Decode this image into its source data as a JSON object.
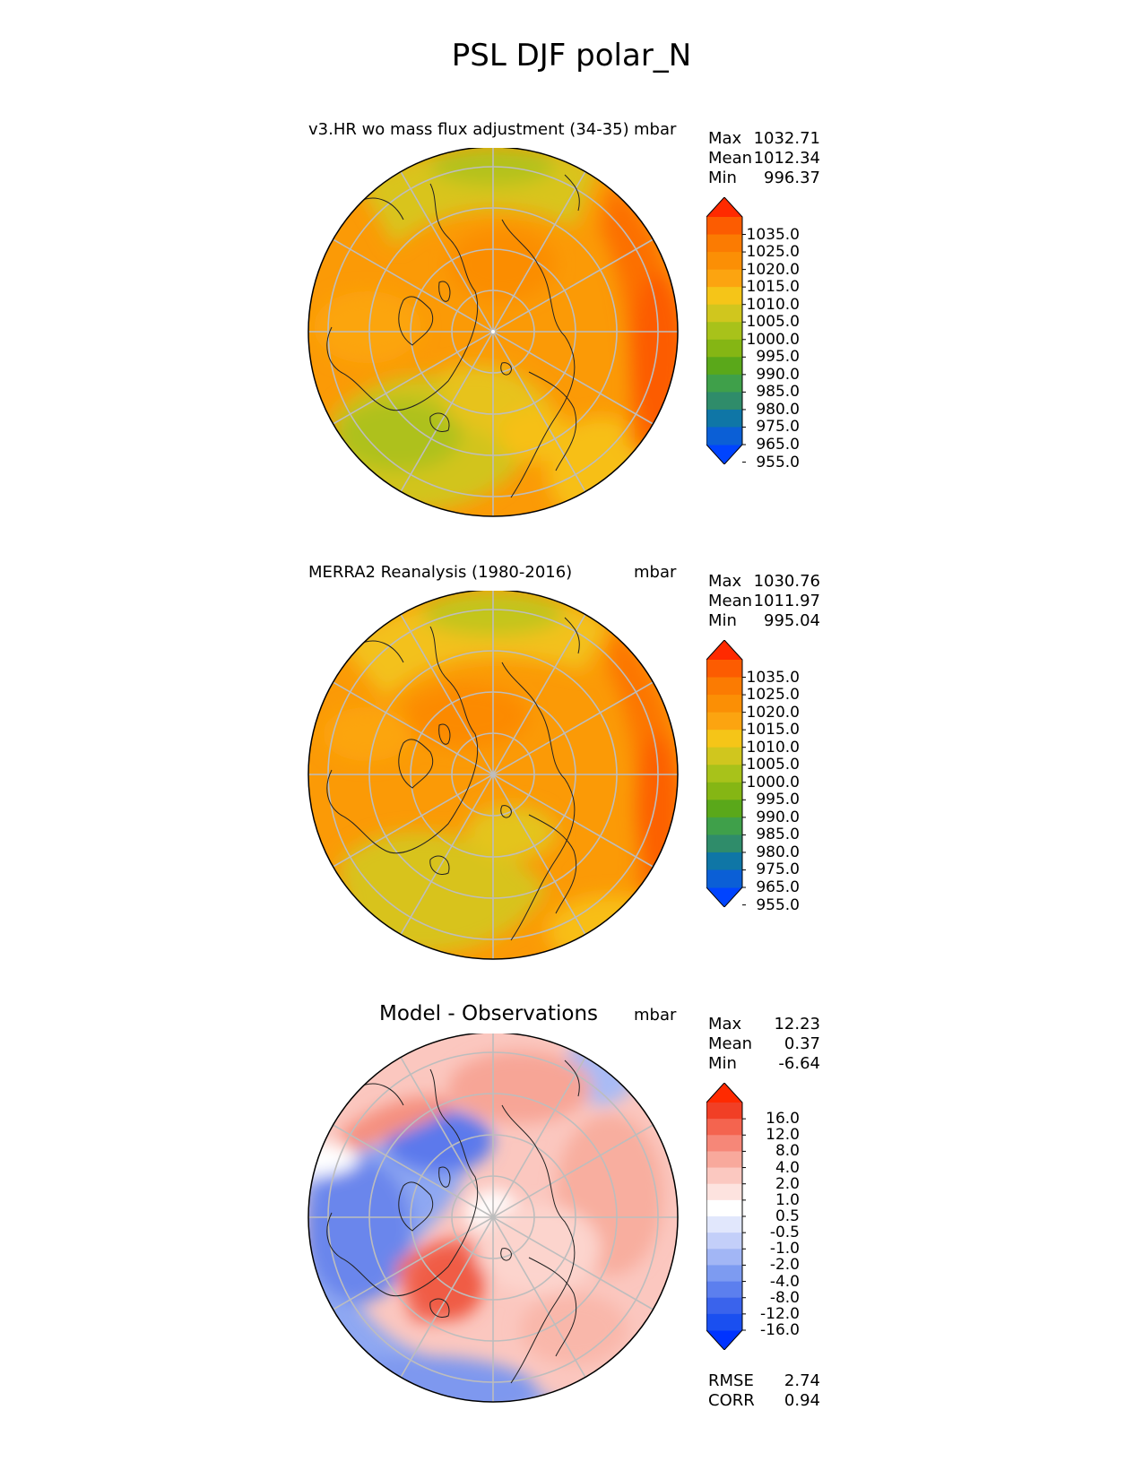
{
  "title": "PSL DJF polar_N",
  "panels": [
    {
      "id": "test",
      "title": "v3.HR wo mass flux adjustment (34-35)",
      "units": "mbar",
      "stats": [
        [
          "Max",
          "1032.71"
        ],
        [
          "Mean",
          "1012.34"
        ],
        [
          "Min",
          "996.37"
        ]
      ],
      "colorbar": {
        "colors": [
          "#0044ff",
          "#0b5fd6",
          "#0f76a6",
          "#2f8c6a",
          "#3fa04a",
          "#5aa81a",
          "#85b614",
          "#a8c21a",
          "#d0c61e",
          "#f5c518",
          "#fca410",
          "#fb8f05",
          "#fb7b02",
          "#fc5c01",
          "#ff2a00"
        ],
        "ticks": [
          "1035.0",
          "1025.0",
          "1020.0",
          "1015.0",
          "1010.0",
          "1005.0",
          "1000.0",
          "995.0",
          "990.0",
          "985.0",
          "980.0",
          "975.0",
          "965.0",
          "955.0"
        ]
      }
    },
    {
      "id": "ref",
      "title": "MERRA2 Reanalysis (1980-2016)",
      "units": "mbar",
      "stats": [
        [
          "Max",
          "1030.76"
        ],
        [
          "Mean",
          "1011.97"
        ],
        [
          "Min",
          "995.04"
        ]
      ],
      "colorbar": {
        "colors": [
          "#0044ff",
          "#0b5fd6",
          "#0f76a6",
          "#2f8c6a",
          "#3fa04a",
          "#5aa81a",
          "#85b614",
          "#a8c21a",
          "#d0c61e",
          "#f5c518",
          "#fca410",
          "#fb8f05",
          "#fb7b02",
          "#fc5c01",
          "#ff2a00"
        ],
        "ticks": [
          "1035.0",
          "1025.0",
          "1020.0",
          "1015.0",
          "1010.0",
          "1005.0",
          "1000.0",
          "995.0",
          "990.0",
          "985.0",
          "980.0",
          "975.0",
          "965.0",
          "955.0"
        ]
      }
    },
    {
      "id": "diff",
      "title": "Model - Observations",
      "units": "mbar",
      "stats": [
        [
          "Max",
          "12.23"
        ],
        [
          "Mean",
          "0.37"
        ],
        [
          "Min",
          "-6.64"
        ]
      ],
      "metrics": [
        [
          "RMSE",
          "2.74"
        ],
        [
          "CORR",
          "0.94"
        ]
      ],
      "colorbar": {
        "colors": [
          "#0033ff",
          "#1a4ff0",
          "#3a63ec",
          "#5c7fee",
          "#7d9bf1",
          "#a2b6f5",
          "#c3cff9",
          "#e1e7fc",
          "#ffffff",
          "#fde3df",
          "#fbc8c0",
          "#f8a99c",
          "#f68778",
          "#f4644f",
          "#f13f25",
          "#ff2a00"
        ],
        "ticks": [
          "16.0",
          "12.0",
          "8.0",
          "4.0",
          "2.0",
          "1.0",
          "0.5",
          "-0.5",
          "-1.0",
          "-2.0",
          "-4.0",
          "-8.0",
          "-12.0",
          "-16.0"
        ]
      }
    }
  ]
}
